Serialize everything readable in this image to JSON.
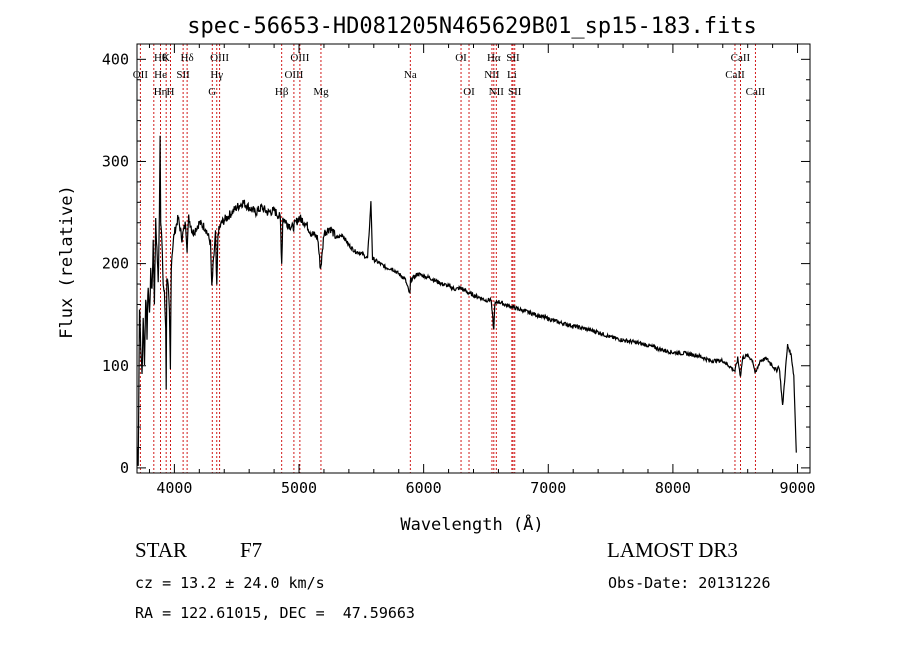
{
  "chart_data": {
    "type": "line",
    "title": "spec-56653-HD081205N465629B01_sp15-183.fits",
    "xlabel": "Wavelength (Å)",
    "ylabel": "Flux (relative)",
    "xlim": [
      3700,
      9100
    ],
    "ylim": [
      -5,
      415
    ],
    "x_ticks": [
      4000,
      5000,
      6000,
      7000,
      8000,
      9000
    ],
    "y_ticks": [
      0,
      100,
      200,
      300,
      400
    ],
    "grid": false,
    "series": [
      {
        "name": "spectrum",
        "x": [
          3700,
          3710,
          3720,
          3730,
          3740,
          3750,
          3760,
          3770,
          3780,
          3790,
          3800,
          3810,
          3820,
          3830,
          3840,
          3850,
          3860,
          3870,
          3880,
          3885,
          3890,
          3900,
          3910,
          3920,
          3930,
          3934,
          3940,
          3950,
          3960,
          3968,
          3975,
          3985,
          4000,
          4030,
          4060,
          4090,
          4102,
          4115,
          4150,
          4200,
          4250,
          4290,
          4300,
          4310,
          4330,
          4340,
          4350,
          4380,
          4420,
          4460,
          4500,
          4550,
          4600,
          4650,
          4700,
          4750,
          4800,
          4850,
          4861,
          4870,
          4900,
          4950,
          5000,
          5050,
          5100,
          5150,
          5172,
          5183,
          5200,
          5250,
          5300,
          5350,
          5400,
          5450,
          5500,
          5550,
          5577,
          5590,
          5650,
          5700,
          5750,
          5800,
          5850,
          5890,
          5895,
          5900,
          5950,
          6000,
          6050,
          6100,
          6150,
          6200,
          6250,
          6300,
          6350,
          6400,
          6450,
          6500,
          6540,
          6563,
          6570,
          6600,
          6650,
          6700,
          6750,
          6800,
          6850,
          6900,
          6950,
          7000,
          7100,
          7200,
          7300,
          7400,
          7500,
          7600,
          7700,
          7800,
          7900,
          8000,
          8100,
          8200,
          8300,
          8400,
          8450,
          8498,
          8520,
          8542,
          8560,
          8600,
          8640,
          8662,
          8700,
          8750,
          8800,
          8830,
          8850,
          8860,
          8880,
          8900,
          8920,
          8950,
          8970,
          8990
        ],
        "values": [
          20,
          5,
          160,
          120,
          90,
          150,
          100,
          170,
          130,
          180,
          150,
          190,
          175,
          220,
          165,
          240,
          215,
          180,
          250,
          330,
          245,
          220,
          180,
          170,
          140,
          80,
          190,
          175,
          150,
          95,
          200,
          215,
          230,
          245,
          225,
          240,
          215,
          245,
          230,
          240,
          235,
          220,
          175,
          195,
          230,
          175,
          230,
          240,
          245,
          250,
          255,
          260,
          255,
          250,
          255,
          250,
          252,
          245,
          200,
          245,
          240,
          235,
          245,
          240,
          230,
          225,
          195,
          205,
          230,
          235,
          225,
          228,
          218,
          212,
          210,
          205,
          260,
          205,
          200,
          196,
          195,
          190,
          185,
          170,
          185,
          184,
          190,
          188,
          186,
          183,
          180,
          178,
          175,
          176,
          172,
          169,
          167,
          164,
          165,
          135,
          160,
          163,
          160,
          158,
          156,
          154,
          152,
          150,
          148,
          146,
          142,
          139,
          136,
          133,
          128,
          125,
          123,
          120,
          116,
          113,
          112,
          110,
          105,
          105,
          100,
          95,
          107,
          90,
          108,
          110,
          105,
          92,
          105,
          107,
          100,
          95,
          100,
          90,
          60,
          92,
          120,
          110,
          90,
          15
        ]
      }
    ],
    "lines": [
      {
        "wl": 3727,
        "labels": [
          "OII"
        ],
        "rows": [
          1
        ]
      },
      {
        "wl": 3835,
        "labels": [],
        "rows": []
      },
      {
        "wl": 3889,
        "labels": [
          "Hθ",
          "He",
          "Hη"
        ],
        "rows": [
          0,
          1,
          2
        ]
      },
      {
        "wl": 3934,
        "labels": [
          "K"
        ],
        "rows": [
          0
        ]
      },
      {
        "wl": 3969,
        "labels": [
          "H"
        ],
        "rows": [
          2
        ]
      },
      {
        "wl": 4070,
        "labels": [
          "SII"
        ],
        "rows": [
          1
        ]
      },
      {
        "wl": 4102,
        "labels": [
          "Hδ"
        ],
        "rows": [
          0
        ]
      },
      {
        "wl": 4304,
        "labels": [
          "G"
        ],
        "rows": [
          2
        ]
      },
      {
        "wl": 4340,
        "labels": [
          "Hγ"
        ],
        "rows": [
          1
        ]
      },
      {
        "wl": 4363,
        "labels": [
          "OIII"
        ],
        "rows": [
          0
        ]
      },
      {
        "wl": 4861,
        "labels": [
          "Hβ"
        ],
        "rows": [
          2
        ]
      },
      {
        "wl": 4959,
        "labels": [
          "OIII"
        ],
        "rows": [
          1
        ]
      },
      {
        "wl": 5007,
        "labels": [
          "OIII"
        ],
        "rows": [
          0
        ]
      },
      {
        "wl": 5176,
        "labels": [
          "Mg"
        ],
        "rows": [
          2
        ]
      },
      {
        "wl": 5893,
        "labels": [
          "Na"
        ],
        "rows": [
          1
        ]
      },
      {
        "wl": 6300,
        "labels": [
          "OI"
        ],
        "rows": [
          0
        ]
      },
      {
        "wl": 6364,
        "labels": [
          "OI"
        ],
        "rows": [
          2
        ]
      },
      {
        "wl": 6548,
        "labels": [
          "NII"
        ],
        "rows": [
          1
        ]
      },
      {
        "wl": 6563,
        "labels": [
          "Hα"
        ],
        "rows": [
          0
        ]
      },
      {
        "wl": 6583,
        "labels": [
          "NII"
        ],
        "rows": [
          2
        ]
      },
      {
        "wl": 6708,
        "labels": [
          "Li"
        ],
        "rows": [
          1
        ]
      },
      {
        "wl": 6717,
        "labels": [
          "SII"
        ],
        "rows": [
          0
        ]
      },
      {
        "wl": 6731,
        "labels": [
          "SII"
        ],
        "rows": [
          2
        ]
      },
      {
        "wl": 8498,
        "labels": [
          "CaII"
        ],
        "rows": [
          1
        ]
      },
      {
        "wl": 8542,
        "labels": [
          "CaII"
        ],
        "rows": [
          0
        ]
      },
      {
        "wl": 8662,
        "labels": [
          "CaII"
        ],
        "rows": [
          2
        ]
      }
    ],
    "line_color": "#cc0000",
    "spectrum_color": "#000000"
  },
  "info": {
    "object_class": "STAR",
    "subclass": "F7",
    "survey": "LAMOST DR3",
    "velocity": "cz = 13.2 ± 24.0 km/s",
    "obs_date": "Obs-Date: 20131226",
    "coords": "RA = 122.61015, DEC =  47.59663"
  }
}
